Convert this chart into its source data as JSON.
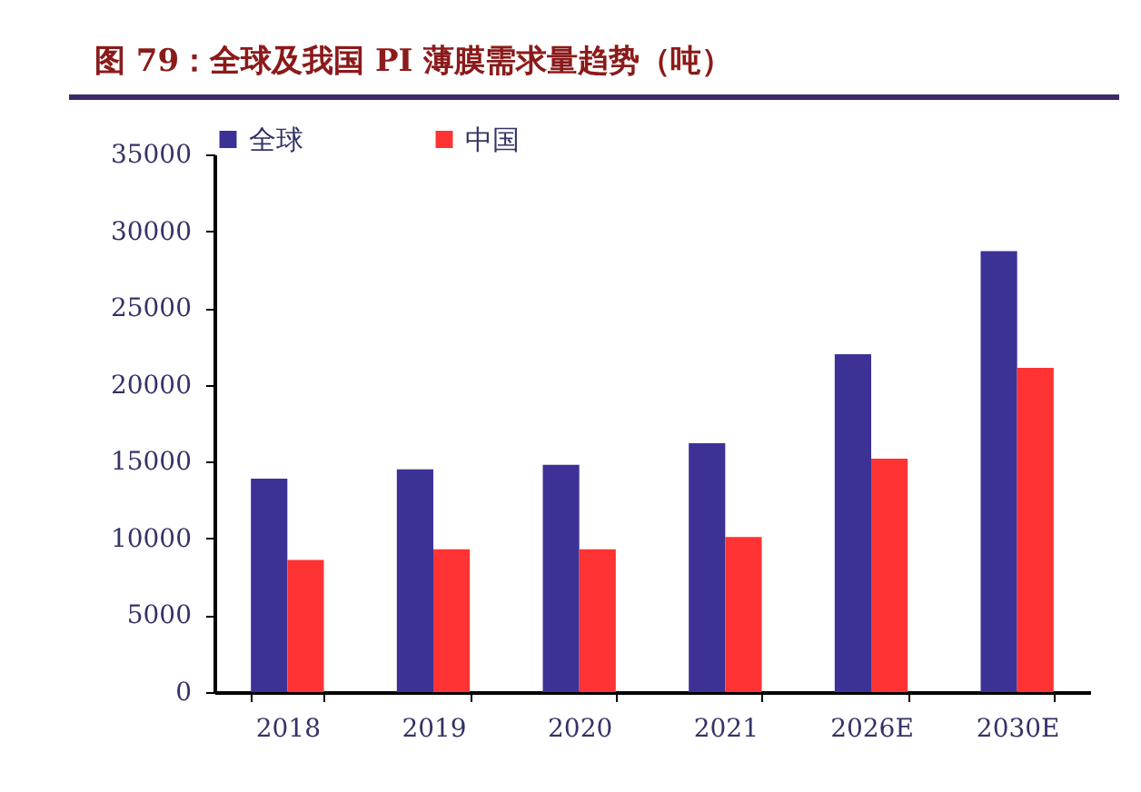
{
  "chart_data": {
    "type": "bar",
    "title": "图 79：全球及我国 PI 薄膜需求量趋势（吨）",
    "categories": [
      "2018",
      "2019",
      "2020",
      "2021",
      "2026E",
      "2030E"
    ],
    "series": [
      {
        "name": "全球",
        "color": "#3c3296",
        "values": [
          13900,
          14500,
          14800,
          16200,
          22000,
          28700
        ]
      },
      {
        "name": "中国",
        "color": "#ff3333",
        "values": [
          8600,
          9300,
          9300,
          10100,
          15200,
          21100
        ]
      }
    ],
    "ylim": [
      0,
      35000
    ],
    "yticks": [
      0,
      5000,
      10000,
      15000,
      20000,
      25000,
      30000,
      35000
    ],
    "grid": false,
    "legend": "top"
  }
}
